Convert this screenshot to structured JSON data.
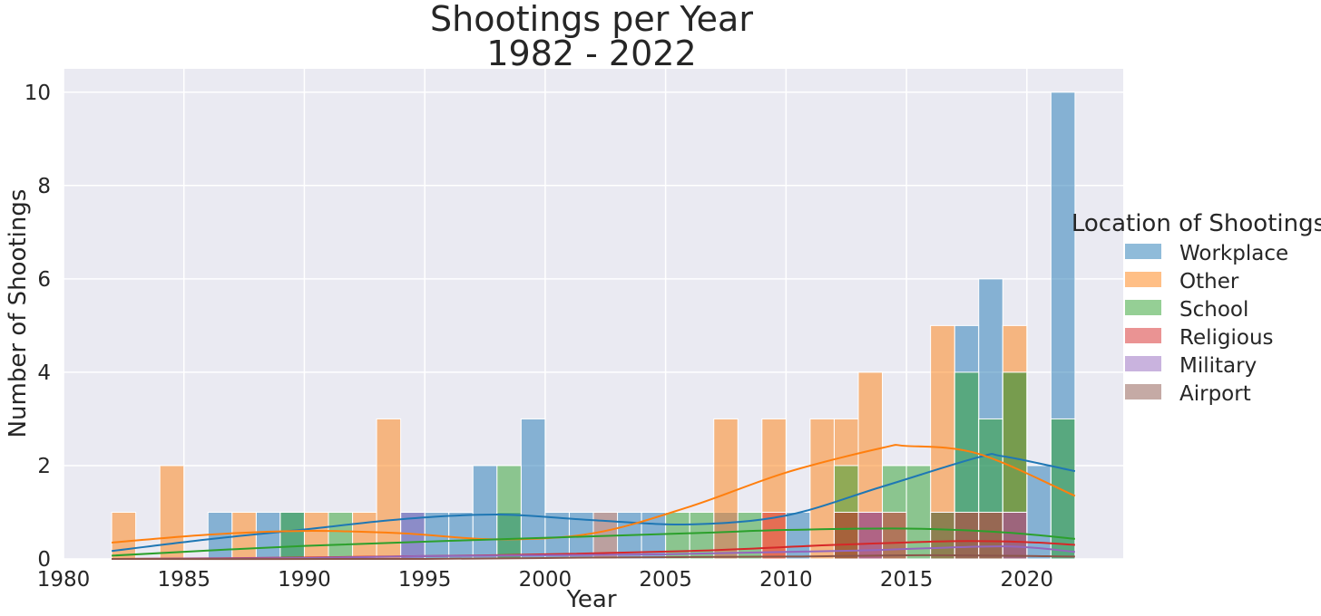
{
  "chart_data": {
    "type": "bar",
    "title": [
      "Shootings per Year",
      "1982 - 2022"
    ],
    "xlabel": "Year",
    "ylabel": "Number of Shootings",
    "xlim": [
      1980,
      2024
    ],
    "ylim": [
      0,
      10.5
    ],
    "xticks": [
      "1980",
      "1985",
      "1990",
      "1995",
      "2000",
      "2005",
      "2010",
      "2015",
      "2020"
    ],
    "yticks": [
      "0",
      "2",
      "4",
      "6",
      "8",
      "10"
    ],
    "grid": true,
    "legend": {
      "title": "Location of Shootings",
      "placement": "right"
    },
    "bin_width": 1,
    "series": [
      {
        "name": "Workplace",
        "color": "#1f77b4",
        "bins": [
          [
            1986,
            1
          ],
          [
            1988,
            1
          ],
          [
            1989,
            1
          ],
          [
            1994,
            1
          ],
          [
            1995,
            1
          ],
          [
            1996,
            1
          ],
          [
            1997,
            2
          ],
          [
            1998,
            1
          ],
          [
            1999,
            3
          ],
          [
            2000,
            1
          ],
          [
            2001,
            1
          ],
          [
            2003,
            1
          ],
          [
            2004,
            1
          ],
          [
            2007,
            1
          ],
          [
            2010,
            1
          ],
          [
            2012,
            1
          ],
          [
            2013,
            1
          ],
          [
            2017,
            5
          ],
          [
            2018,
            6
          ],
          [
            2019,
            4
          ],
          [
            2020,
            2
          ],
          [
            2021,
            10
          ]
        ],
        "kde": [
          [
            1982,
            0.17
          ],
          [
            1986,
            0.42
          ],
          [
            1990,
            0.63
          ],
          [
            1994,
            0.85
          ],
          [
            1998,
            0.95
          ],
          [
            2002,
            0.83
          ],
          [
            2006,
            0.74
          ],
          [
            2010,
            0.93
          ],
          [
            2014,
            1.55
          ],
          [
            2018,
            2.18
          ],
          [
            2019,
            2.2
          ],
          [
            2022,
            1.88
          ]
        ]
      },
      {
        "name": "Other",
        "color": "#ff7f0e",
        "bins": [
          [
            1982,
            1
          ],
          [
            1984,
            2
          ],
          [
            1987,
            1
          ],
          [
            1990,
            1
          ],
          [
            1992,
            1
          ],
          [
            1993,
            3
          ],
          [
            2007,
            3
          ],
          [
            2009,
            3
          ],
          [
            2011,
            3
          ],
          [
            2012,
            3
          ],
          [
            2013,
            4
          ],
          [
            2016,
            5
          ],
          [
            2019,
            5
          ]
        ],
        "kde": [
          [
            1982,
            0.35
          ],
          [
            1986,
            0.52
          ],
          [
            1990,
            0.6
          ],
          [
            1994,
            0.55
          ],
          [
            1998,
            0.42
          ],
          [
            2002,
            0.55
          ],
          [
            2006,
            1.12
          ],
          [
            2010,
            1.85
          ],
          [
            2014,
            2.38
          ],
          [
            2015,
            2.42
          ],
          [
            2018,
            2.25
          ],
          [
            2022,
            1.35
          ]
        ]
      },
      {
        "name": "School",
        "color": "#2ca02c",
        "bins": [
          [
            1989,
            1
          ],
          [
            1991,
            1
          ],
          [
            1998,
            2
          ],
          [
            2005,
            1
          ],
          [
            2006,
            1
          ],
          [
            2008,
            1
          ],
          [
            2012,
            2
          ],
          [
            2014,
            2
          ],
          [
            2015,
            2
          ],
          [
            2016,
            1
          ],
          [
            2017,
            4
          ],
          [
            2018,
            3
          ],
          [
            2019,
            4
          ],
          [
            2021,
            3
          ]
        ],
        "kde": [
          [
            1982,
            0.07
          ],
          [
            1990,
            0.28
          ],
          [
            1998,
            0.42
          ],
          [
            2006,
            0.55
          ],
          [
            2010,
            0.62
          ],
          [
            2015,
            0.65
          ],
          [
            2019,
            0.57
          ],
          [
            2022,
            0.43
          ]
        ]
      },
      {
        "name": "Religious",
        "color": "#d62728",
        "bins": [
          [
            2009,
            1
          ],
          [
            2012,
            1
          ],
          [
            2013,
            1
          ],
          [
            2014,
            1
          ],
          [
            2017,
            1
          ],
          [
            2018,
            1
          ],
          [
            2019,
            1
          ]
        ],
        "kde": [
          [
            1982,
            0.0
          ],
          [
            1990,
            0.03
          ],
          [
            1998,
            0.08
          ],
          [
            2006,
            0.17
          ],
          [
            2012,
            0.3
          ],
          [
            2017,
            0.38
          ],
          [
            2020,
            0.36
          ],
          [
            2022,
            0.3
          ]
        ]
      },
      {
        "name": "Military",
        "color": "#9467bd",
        "bins": [
          [
            1994,
            1
          ],
          [
            2013,
            1
          ],
          [
            2019,
            1
          ]
        ],
        "kde": [
          [
            1982,
            0.0
          ],
          [
            1990,
            0.02
          ],
          [
            1995,
            0.06
          ],
          [
            2005,
            0.1
          ],
          [
            2013,
            0.18
          ],
          [
            2019,
            0.27
          ],
          [
            2022,
            0.15
          ]
        ]
      },
      {
        "name": "Airport",
        "color": "#8c564b",
        "bins": [
          [
            2002,
            1
          ],
          [
            2016,
            1
          ]
        ],
        "kde": [
          [
            1982,
            0.0
          ],
          [
            1995,
            0.0
          ],
          [
            2002,
            0.03
          ],
          [
            2010,
            0.05
          ],
          [
            2016,
            0.08
          ],
          [
            2022,
            0.05
          ]
        ]
      }
    ]
  }
}
